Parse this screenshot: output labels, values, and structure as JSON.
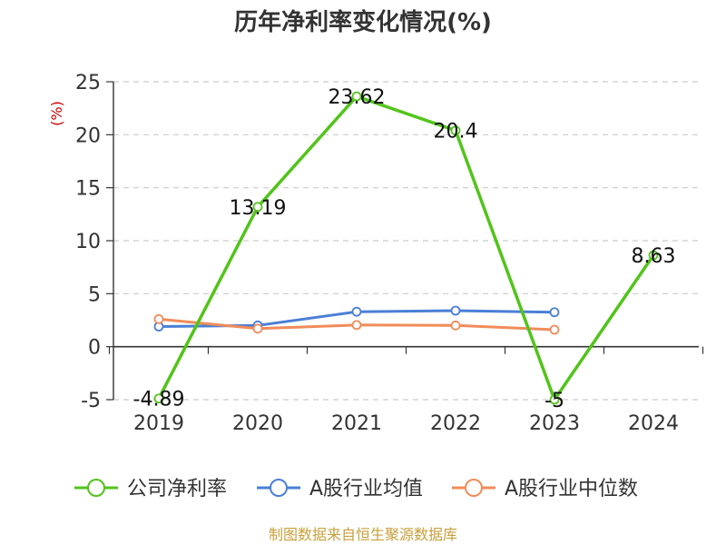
{
  "chart_data": {
    "type": "line",
    "title": "历年净利率变化情况(%)",
    "ylabel": "(%)",
    "categories": [
      "2019",
      "2020",
      "2021",
      "2022",
      "2023",
      "2024"
    ],
    "ylim": [
      -5,
      25
    ],
    "yticks": [
      -5,
      0,
      5,
      10,
      15,
      20,
      25
    ],
    "grid": true,
    "legend_position": "bottom",
    "series": [
      {
        "name": "公司净利率",
        "color": "#52c41a",
        "values": [
          -4.89,
          13.19,
          23.62,
          20.4,
          -5,
          8.63
        ],
        "labels": [
          "-4.89",
          "13.19",
          "23.62",
          "20.4",
          "-5",
          "8.63"
        ]
      },
      {
        "name": "A股行业均值",
        "color": "#4a7fd6",
        "values": [
          1.9,
          2.0,
          3.3,
          3.4,
          3.25,
          null
        ]
      },
      {
        "name": "A股行业中位数",
        "color": "#f08c5a",
        "values": [
          2.6,
          1.7,
          2.05,
          2.0,
          1.6,
          null
        ]
      }
    ]
  },
  "footer": {
    "source": "制图数据来自恒生聚源数据库"
  }
}
